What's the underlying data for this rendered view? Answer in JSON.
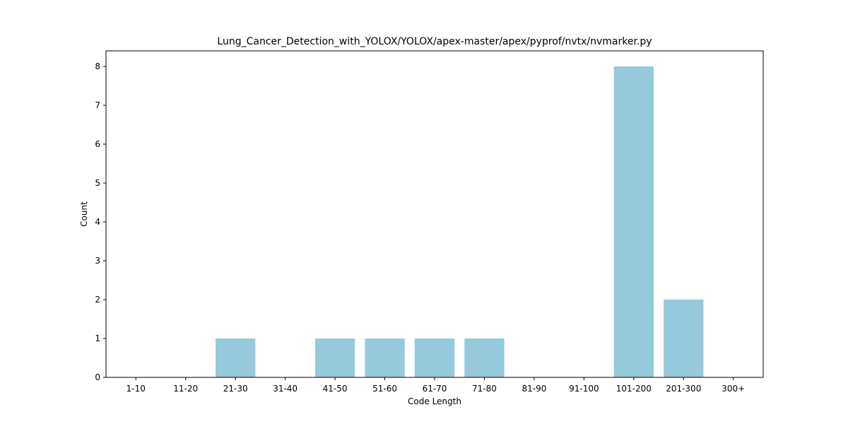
{
  "chart_data": {
    "type": "bar",
    "title": "Lung_Cancer_Detection_with_YOLOX/YOLOX/apex-master/apex/pyprof/nvtx/nvmarker.py",
    "xlabel": "Code Length",
    "ylabel": "Count",
    "categories": [
      "1-10",
      "11-20",
      "21-30",
      "31-40",
      "41-50",
      "51-60",
      "61-70",
      "71-80",
      "81-90",
      "91-100",
      "101-200",
      "201-300",
      "300+"
    ],
    "values": [
      0,
      0,
      1,
      0,
      1,
      1,
      1,
      1,
      0,
      0,
      8,
      2,
      0
    ],
    "ylim": [
      0,
      8.4
    ],
    "yticks": [
      0,
      1,
      2,
      3,
      4,
      5,
      6,
      7,
      8
    ],
    "bar_color": "#96c9dc",
    "grid": false
  }
}
